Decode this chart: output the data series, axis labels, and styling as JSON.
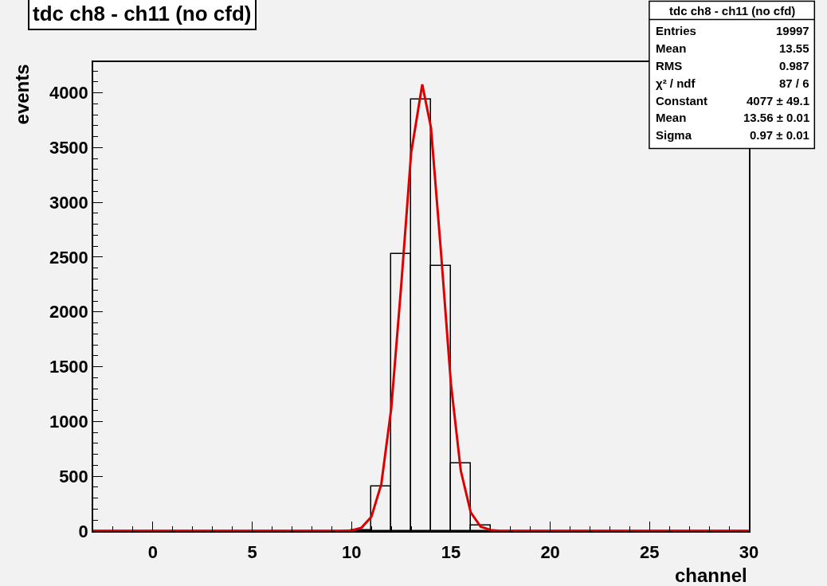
{
  "chart_data": {
    "type": "histogram",
    "title": "tdc ch8 - ch11 (no cfd)",
    "xlabel": "channel",
    "ylabel": "events",
    "bins": [
      -3,
      -2,
      -1,
      0,
      1,
      2,
      3,
      4,
      5,
      6,
      7,
      8,
      9,
      10,
      11,
      12,
      13,
      14,
      15,
      16,
      17,
      18,
      19,
      20,
      21,
      22,
      23,
      24,
      25,
      26,
      27,
      28,
      29,
      30
    ],
    "series": [
      {
        "color": "#000000",
        "values": [
          0,
          0,
          0,
          0,
          0,
          0,
          0,
          0,
          0,
          0,
          0,
          0,
          0,
          10,
          405,
          2530,
          3940,
          2420,
          620,
          50,
          0,
          0,
          0,
          0,
          0,
          0,
          0,
          0,
          0,
          0,
          0,
          0,
          0
        ]
      },
      {
        "type": "line",
        "color": "#dd0000",
        "x": [
          -3,
          9.5,
          10,
          10.5,
          11,
          11.5,
          12,
          12.5,
          13,
          13.56,
          14,
          14.5,
          15,
          15.5,
          16,
          16.5,
          17,
          17.5,
          30
        ],
        "values": [
          0,
          0,
          5,
          30,
          130,
          430,
          1120,
          2240,
          3450,
          4077,
          3680,
          2550,
          1350,
          550,
          170,
          40,
          10,
          0,
          0
        ]
      }
    ],
    "xlim": [
      -3,
      30
    ],
    "ylim": [
      0,
      4280
    ],
    "xticks": [
      0,
      5,
      10,
      15,
      20,
      25,
      30
    ],
    "yticks": [
      0,
      500,
      1000,
      1500,
      2000,
      2500,
      3000,
      3500,
      4000
    ],
    "grid": false,
    "legend": false,
    "annotations": [
      "tdc ch8 - ch11 (no cfd)",
      "Entries",
      "19997",
      "Mean",
      "13.55",
      "RMS",
      "0.987",
      "χ² / ndf",
      "87 / 6",
      "Constant",
      "4077 ± 49.1",
      "Mean",
      "13.56 ± 0.01",
      "Sigma",
      "0.97 ± 0.01"
    ]
  }
}
